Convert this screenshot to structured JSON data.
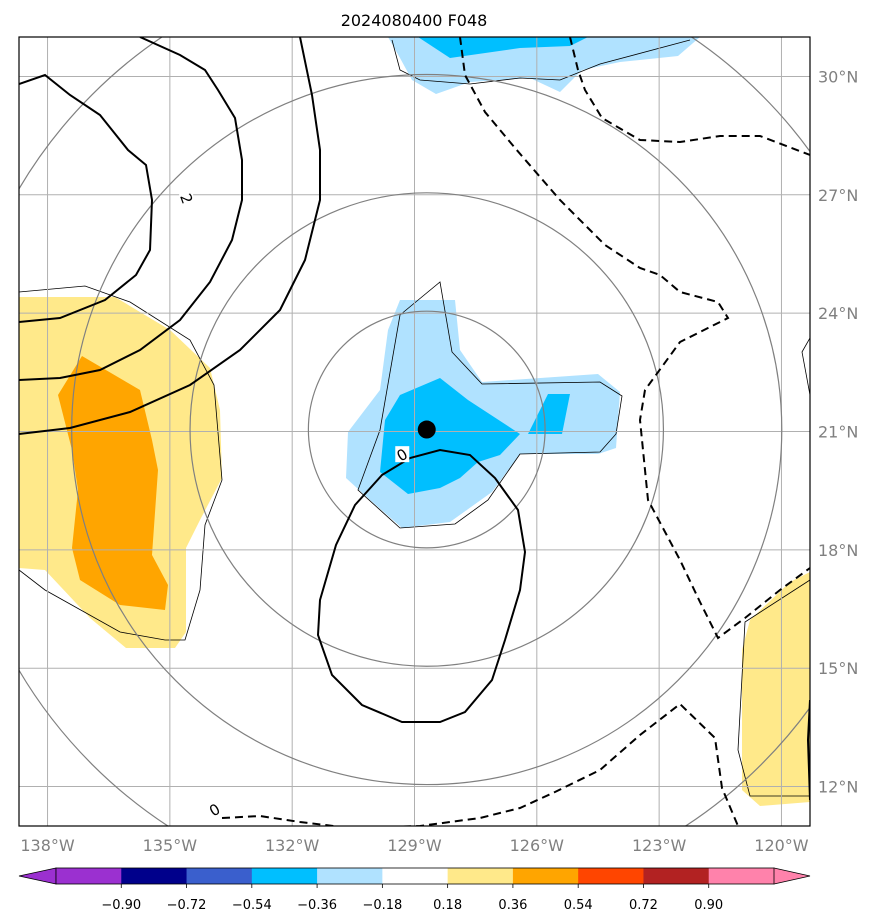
{
  "title": "2024080400 F048",
  "map": {
    "lon_range": [
      -138.7,
      -119.3
    ],
    "lat_range": [
      11.0,
      31.0
    ],
    "lon_ticks": [
      -138,
      -135,
      -132,
      -129,
      -126,
      -123,
      -120
    ],
    "lon_tick_labels": [
      "138°W",
      "135°W",
      "132°W",
      "129°W",
      "126°W",
      "123°W",
      "120°W"
    ],
    "lat_ticks": [
      12,
      15,
      18,
      21,
      24,
      27,
      30
    ],
    "lat_tick_labels": [
      "12°N",
      "15°N",
      "18°N",
      "21°N",
      "24°N",
      "27°N",
      "30°N"
    ],
    "storm_center": {
      "lon": -128.7,
      "lat": 21.05
    },
    "range_rings_deg": [
      3,
      6,
      9,
      12
    ],
    "contour_labels": [
      {
        "text": "2",
        "lon": -134.6,
        "lat": 26.9
      },
      {
        "text": "0",
        "lon": -129.3,
        "lat": 20.4
      },
      {
        "text": "0",
        "lon": -133.9,
        "lat": 11.4
      }
    ],
    "grid_color": "#b0b0b0",
    "ring_color": "#808080"
  },
  "colorbar": {
    "colors": [
      "#9b30d0",
      "#00008b",
      "#3a5fcd",
      "#00bfff",
      "#b0e2ff",
      "#ffffff",
      "#ffe98a",
      "#ffa500",
      "#ff4500",
      "#b22222",
      "#ff82ab"
    ],
    "under_color": "#9b30d0",
    "over_color": "#ff82ab",
    "tick_labels": [
      "−0.90",
      "−0.72",
      "−0.54",
      "−0.36",
      "−0.18",
      "0.18",
      "0.36",
      "0.54",
      "0.72",
      "0.90"
    ]
  }
}
